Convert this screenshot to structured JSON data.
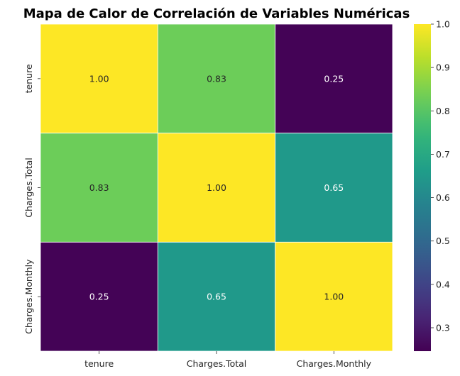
{
  "chart_data": {
    "type": "heatmap",
    "title": "Mapa de Calor de Correlación de Variables Numéricas",
    "x_labels": [
      "tenure",
      "Charges.Total",
      "Charges.Monthly"
    ],
    "y_labels": [
      "tenure",
      "Charges.Total",
      "Charges.Monthly"
    ],
    "values": [
      [
        1.0,
        0.83,
        0.25
      ],
      [
        0.83,
        1.0,
        0.65
      ],
      [
        0.25,
        0.65,
        1.0
      ]
    ],
    "annotations": [
      [
        "1.00",
        "0.83",
        "0.25"
      ],
      [
        "0.83",
        "1.00",
        "0.65"
      ],
      [
        "0.25",
        "0.65",
        "1.00"
      ]
    ],
    "colormap": "viridis",
    "colorbar": {
      "range": [
        0.246,
        1.0
      ],
      "ticks": [
        0.3,
        0.4,
        0.5,
        0.6,
        0.7,
        0.8,
        0.9,
        1.0
      ],
      "tick_labels": [
        "0.3",
        "0.4",
        "0.5",
        "0.6",
        "0.7",
        "0.8",
        "0.9",
        "1.0"
      ]
    },
    "cell_border_color": "#ffffff"
  }
}
